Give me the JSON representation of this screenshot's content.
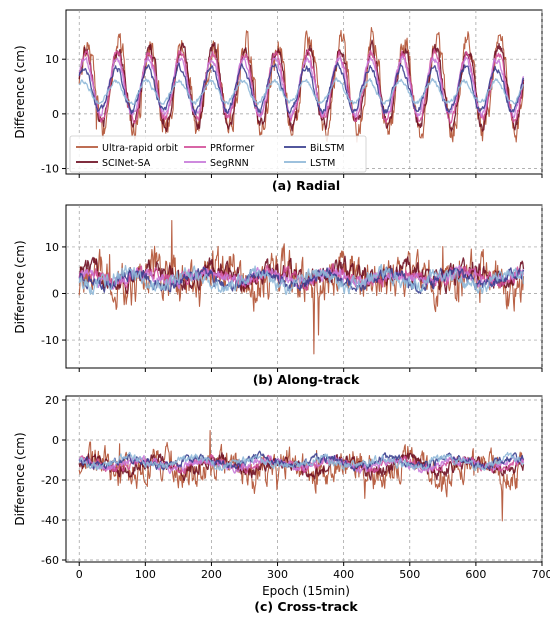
{
  "figure": {
    "x_axis_label": "Epoch (15min)",
    "x_ticks": [
      0,
      100,
      200,
      300,
      400,
      500,
      600,
      700
    ]
  },
  "legend": {
    "entries": [
      {
        "name": "Ultra-rapid orbit",
        "color": "#b55a3c"
      },
      {
        "name": "SCINet-SA",
        "color": "#6e0f22"
      },
      {
        "name": "PRformer",
        "color": "#d24f9a"
      },
      {
        "name": "SegRNN",
        "color": "#c77ad9"
      },
      {
        "name": "BiLSTM",
        "color": "#3a3f8f"
      },
      {
        "name": "LSTM",
        "color": "#8fb8d8"
      }
    ]
  },
  "chart_data": [
    {
      "type": "line",
      "caption": "(a) Radial",
      "ylabel": "Difference (cm)",
      "xlabel": "",
      "xlim": [
        -20,
        700
      ],
      "ylim": [
        -11,
        19
      ],
      "y_ticks": [
        -10,
        0,
        10
      ],
      "grid": true,
      "legend_position": "lower-left",
      "pattern": "periodic",
      "approx_series": [
        {
          "name": "Ultra-rapid orbit",
          "mean": 5,
          "amplitude": 8,
          "noise": 3.0
        },
        {
          "name": "SCINet-SA",
          "mean": 5,
          "amplitude": 7,
          "noise": 1.5
        },
        {
          "name": "PRformer",
          "mean": 5,
          "amplitude": 6,
          "noise": 1.0
        },
        {
          "name": "SegRNN",
          "mean": 5,
          "amplitude": 5,
          "noise": 0.8
        },
        {
          "name": "BiLSTM",
          "mean": 4.5,
          "amplitude": 4,
          "noise": 0.8
        },
        {
          "name": "LSTM",
          "mean": 4,
          "amplitude": 2,
          "noise": 0.5
        }
      ]
    },
    {
      "type": "line",
      "caption": "(b) Along-track",
      "ylabel": "Difference (cm)",
      "xlabel": "",
      "xlim": [
        -20,
        700
      ],
      "ylim": [
        -16,
        19
      ],
      "y_ticks": [
        -10,
        0,
        10
      ],
      "grid": true,
      "pattern": "noisy",
      "approx_series": [
        {
          "name": "Ultra-rapid orbit",
          "mean": 3,
          "amplitude": 2,
          "noise": 5.5
        },
        {
          "name": "SCINet-SA",
          "mean": 4,
          "amplitude": 1.5,
          "noise": 2.5
        },
        {
          "name": "PRformer",
          "mean": 3.5,
          "amplitude": 1,
          "noise": 1.8
        },
        {
          "name": "SegRNN",
          "mean": 3.5,
          "amplitude": 1,
          "noise": 1.5
        },
        {
          "name": "BiLSTM",
          "mean": 3,
          "amplitude": 1.5,
          "noise": 1.5
        },
        {
          "name": "LSTM",
          "mean": 3,
          "amplitude": 1.5,
          "noise": 1.8
        }
      ]
    },
    {
      "type": "line",
      "caption": "(c) Cross-track",
      "ylabel": "Difference (cm)",
      "xlabel": "Epoch (15min)",
      "xlim": [
        -20,
        700
      ],
      "ylim": [
        -61,
        22
      ],
      "y_ticks": [
        -60,
        -40,
        -20,
        0,
        20
      ],
      "grid": true,
      "pattern": "noisy",
      "approx_series": [
        {
          "name": "Ultra-rapid orbit",
          "mean": -14,
          "amplitude": 4,
          "noise": 9
        },
        {
          "name": "SCINet-SA",
          "mean": -13,
          "amplitude": 3,
          "noise": 4
        },
        {
          "name": "PRformer",
          "mean": -12,
          "amplitude": 2,
          "noise": 2.5
        },
        {
          "name": "SegRNN",
          "mean": -12,
          "amplitude": 2,
          "noise": 2.5
        },
        {
          "name": "BiLSTM",
          "mean": -11,
          "amplitude": 2,
          "noise": 2.5
        },
        {
          "name": "LSTM",
          "mean": -11,
          "amplitude": 2,
          "noise": 2.5
        }
      ]
    }
  ]
}
